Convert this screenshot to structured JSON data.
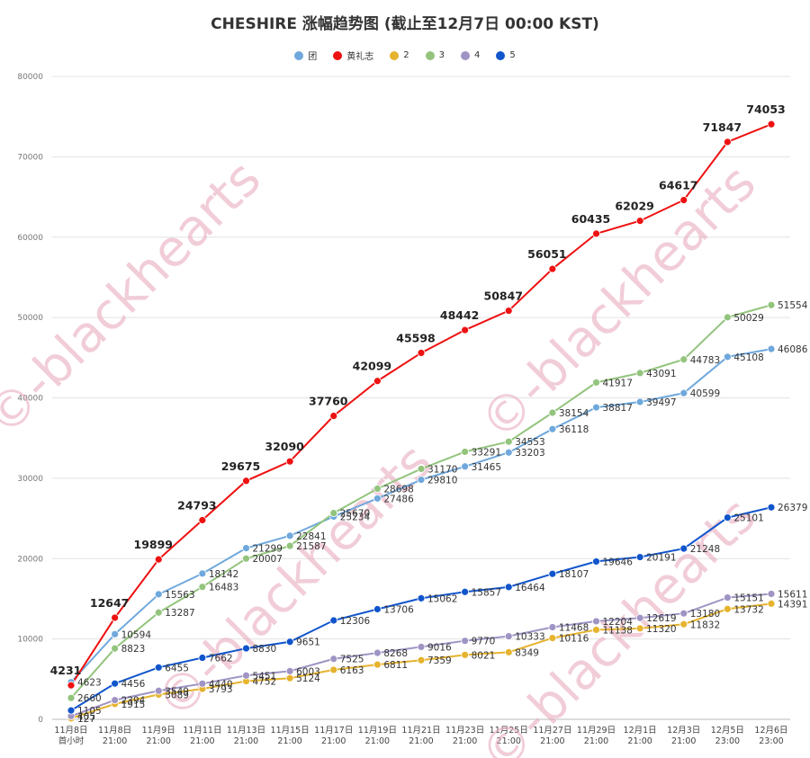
{
  "chart_data": {
    "type": "line",
    "title": "CHESHIRE 涨幅趋势图    (截止至12月7日 00:00 KST)",
    "xlabel": "",
    "ylabel": "",
    "ylim": [
      0,
      80000
    ],
    "yticks": [
      0,
      10000,
      20000,
      30000,
      40000,
      50000,
      60000,
      70000,
      80000
    ],
    "grid": true,
    "legend_position": "top",
    "watermark": "©-blackhearts",
    "categories": [
      [
        "11月8日",
        "首小时"
      ],
      [
        "11月8日",
        "21:00"
      ],
      [
        "11月9日",
        "21:00"
      ],
      [
        "11月11日",
        "21:00"
      ],
      [
        "11月13日",
        "21:00"
      ],
      [
        "11月15日",
        "21:00"
      ],
      [
        "11月17日",
        "21:00"
      ],
      [
        "11月19日",
        "21:00"
      ],
      [
        "11月21日",
        "21:00"
      ],
      [
        "11月23日",
        "21:00"
      ],
      [
        "11月25日",
        "21:00"
      ],
      [
        "11月27日",
        "21:00"
      ],
      [
        "11月29日",
        "21:00"
      ],
      [
        "12月1日",
        "21:00"
      ],
      [
        "12月3日",
        "21:00"
      ],
      [
        "12月5日",
        "23:00"
      ],
      [
        "12月6日",
        "23:00"
      ]
    ],
    "series": [
      {
        "name": "团",
        "color": "#6fa8dc",
        "bold_labels": false,
        "values": [
          4623,
          10594,
          15563,
          18142,
          21299,
          22841,
          25234,
          27486,
          29810,
          31465,
          33203,
          36118,
          38817,
          39497,
          40599,
          45108,
          46086
        ]
      },
      {
        "name": "黄礼志",
        "color": "#ee1111",
        "bold_labels": true,
        "values": [
          4231,
          12647,
          19899,
          24793,
          29675,
          32090,
          37760,
          42099,
          45598,
          48442,
          50847,
          56051,
          60435,
          62029,
          64617,
          71847,
          74053
        ]
      },
      {
        "name": "2",
        "color": "#e6b32e",
        "bold_labels": false,
        "values": [
          127,
          1915,
          3089,
          3793,
          4752,
          5124,
          6163,
          6811,
          7359,
          8021,
          8349,
          10116,
          11138,
          11320,
          11832,
          13732,
          14391
        ]
      },
      {
        "name": "3",
        "color": "#93c47d",
        "bold_labels": false,
        "values": [
          2660,
          8823,
          13287,
          16483,
          20007,
          21587,
          25670,
          28698,
          31170,
          33291,
          34553,
          38154,
          41917,
          43091,
          44783,
          50029,
          51554
        ]
      },
      {
        "name": "4",
        "color": "#9f94c4",
        "bold_labels": false,
        "values": [
          405,
          2394,
          3549,
          4440,
          5451,
          6003,
          7525,
          8268,
          9016,
          9770,
          10333,
          11468,
          12204,
          12619,
          13180,
          15151,
          15611
        ]
      },
      {
        "name": "5",
        "color": "#1155cc",
        "bold_labels": false,
        "values": [
          1105,
          4456,
          6455,
          7662,
          8830,
          9651,
          12306,
          13706,
          15062,
          15857,
          16464,
          18107,
          19646,
          20191,
          21248,
          25101,
          26379
        ]
      }
    ]
  }
}
